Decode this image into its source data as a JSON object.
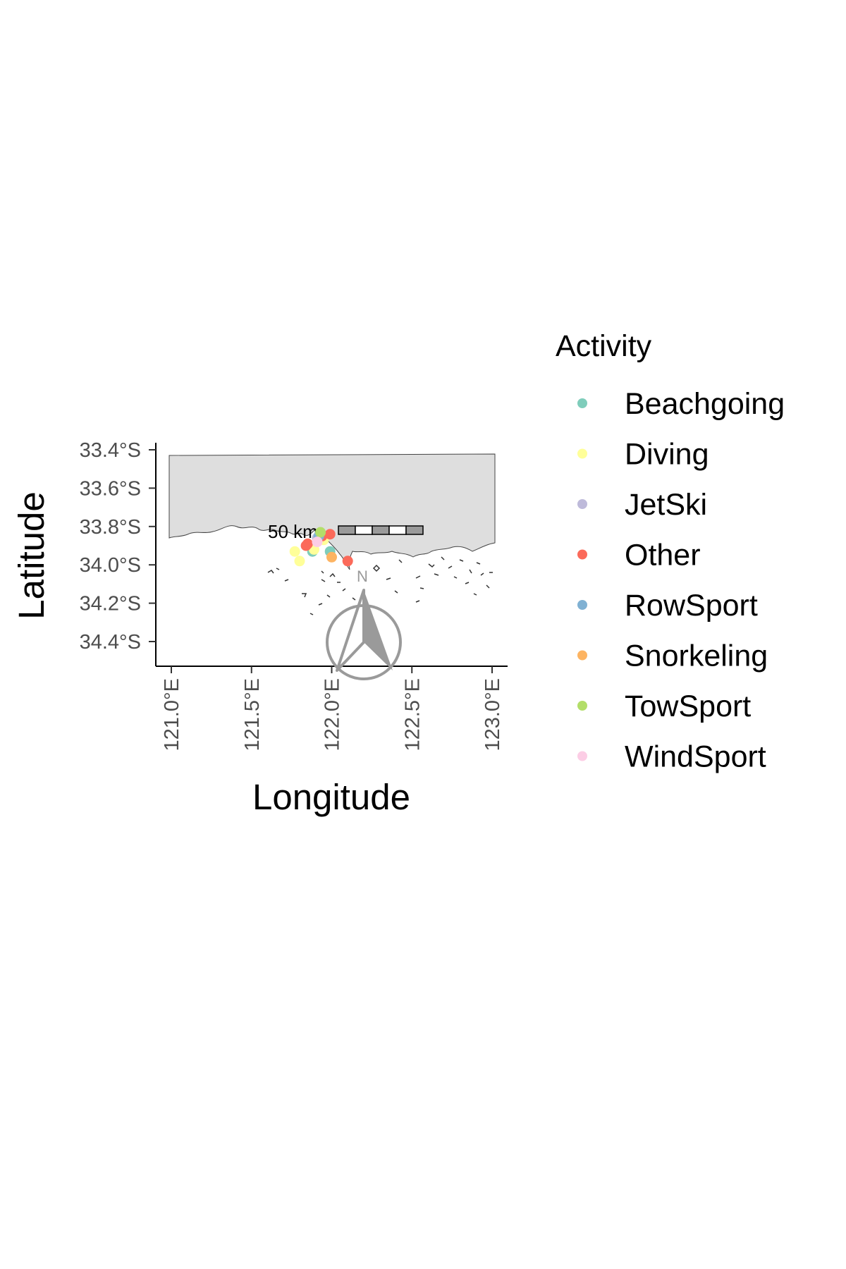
{
  "chart_data": {
    "type": "scatter",
    "subtype": "map",
    "xlabel": "Longitude",
    "ylabel": "Latitude",
    "xlim": [
      120.95,
      123.08
    ],
    "ylim": [
      -34.53,
      -33.38
    ],
    "x_ticks": [
      {
        "value": 121.0,
        "label": "121.0°E"
      },
      {
        "value": 121.5,
        "label": "121.5°E"
      },
      {
        "value": 122.0,
        "label": "122.0°E"
      },
      {
        "value": 122.5,
        "label": "122.5°E"
      },
      {
        "value": 123.0,
        "label": "123.0°E"
      }
    ],
    "y_ticks": [
      {
        "value": -33.4,
        "label": "33.4°S"
      },
      {
        "value": -33.6,
        "label": "33.6°S"
      },
      {
        "value": -33.8,
        "label": "33.8°S"
      },
      {
        "value": -34.0,
        "label": "34.0°S"
      },
      {
        "value": -34.2,
        "label": "34.2°S"
      },
      {
        "value": -34.4,
        "label": "34.4°S"
      }
    ],
    "grid": false,
    "legend": {
      "title": "Activity",
      "position": "right"
    },
    "scale_bar": {
      "label": "50 km"
    },
    "north_arrow": {
      "label": "N"
    },
    "series": [
      {
        "name": "Beachgoing",
        "color": "#7fcdbb",
        "points": [
          [
            121.93,
            -33.84
          ],
          [
            121.88,
            -33.93
          ],
          [
            121.99,
            -33.93
          ]
        ]
      },
      {
        "name": "Diving",
        "color": "#ffff99",
        "points": [
          [
            121.77,
            -33.93
          ],
          [
            121.8,
            -33.98
          ],
          [
            121.89,
            -33.92
          ],
          [
            121.95,
            -33.87
          ]
        ]
      },
      {
        "name": "JetSki",
        "color": "#bebada",
        "points": [
          [
            121.91,
            -33.86
          ]
        ]
      },
      {
        "name": "Other",
        "color": "#fb6a5a",
        "points": [
          [
            121.99,
            -33.84
          ],
          [
            121.85,
            -33.89
          ],
          [
            121.84,
            -33.9
          ],
          [
            121.94,
            -33.85
          ],
          [
            122.1,
            -33.98
          ]
        ]
      },
      {
        "name": "RowSport",
        "color": "#80b1d3",
        "points": [
          [
            121.92,
            -33.85
          ]
        ]
      },
      {
        "name": "Snorkeling",
        "color": "#fdb462",
        "points": [
          [
            122.0,
            -33.96
          ]
        ]
      },
      {
        "name": "TowSport",
        "color": "#b3de69",
        "points": [
          [
            121.93,
            -33.83
          ]
        ]
      },
      {
        "name": "WindSport",
        "color": "#fccde5",
        "points": [
          [
            121.91,
            -33.88
          ]
        ]
      }
    ]
  }
}
